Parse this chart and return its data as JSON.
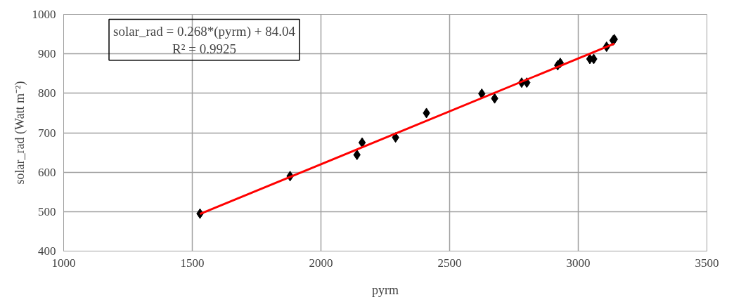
{
  "chart_data": {
    "type": "scatter",
    "xlabel": "pyrm",
    "ylabel": "solar_rad (Watt m⁻²)",
    "xlim": [
      1000,
      3500
    ],
    "ylim": [
      400,
      1000
    ],
    "xticks": [
      1000,
      1500,
      2000,
      2500,
      3000,
      3500
    ],
    "yticks": [
      400,
      500,
      600,
      700,
      800,
      900,
      1000
    ],
    "grid": true,
    "marker": "diamond",
    "annotations": [
      "solar_rad = 0.268*(pyrm) + 84.04\nR² = 0.9925"
    ],
    "series": [
      {
        "color": "#000000",
        "x": [
          1530,
          1880,
          2140,
          2160,
          2290,
          2410,
          2625,
          2675,
          2780,
          2800,
          2920,
          2930,
          3045,
          3060,
          3110,
          3135,
          3140
        ],
        "values": [
          495,
          590,
          644,
          675,
          688,
          750,
          799,
          787,
          827,
          827,
          871,
          877,
          887,
          887,
          918,
          934,
          937
        ]
      },
      {
        "type": "line",
        "marker": "none",
        "color": "#ff0000",
        "x": [
          1530,
          3140
        ],
        "values": [
          494,
          926
        ]
      }
    ]
  }
}
